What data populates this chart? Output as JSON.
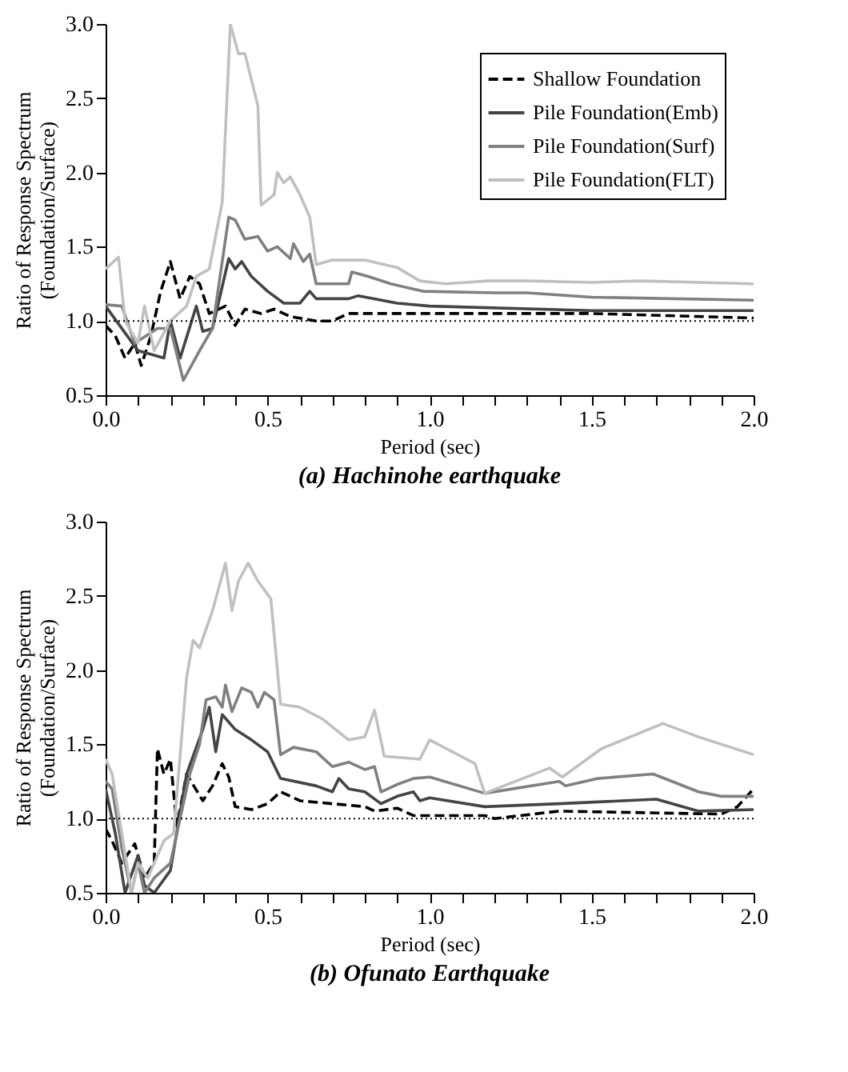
{
  "chart_data": [
    {
      "type": "line",
      "title": "(a) Hachinohe earthquake",
      "xlabel": "Period (sec)",
      "ylabel": "Ratio of Response Spectrum\n(Foundation/Surface)",
      "xlim": [
        0,
        2
      ],
      "ylim": [
        0.5,
        3
      ],
      "xticks": [
        {
          "value": 0,
          "label": "0.0"
        },
        {
          "value": 0.1,
          "label": null
        },
        {
          "value": 0.2,
          "label": null
        },
        {
          "value": 0.3,
          "label": null
        },
        {
          "value": 0.4,
          "label": null
        },
        {
          "value": 0.5,
          "label": "0.5"
        },
        {
          "value": 0.6,
          "label": null
        },
        {
          "value": 0.7,
          "label": null
        },
        {
          "value": 0.8,
          "label": null
        },
        {
          "value": 0.9,
          "label": null
        },
        {
          "value": 1,
          "label": "1.0"
        },
        {
          "value": 1.1,
          "label": null
        },
        {
          "value": 1.2,
          "label": null
        },
        {
          "value": 1.3,
          "label": null
        },
        {
          "value": 1.4,
          "label": null
        },
        {
          "value": 1.5,
          "label": "1.5"
        },
        {
          "value": 1.6,
          "label": null
        },
        {
          "value": 1.7,
          "label": null
        },
        {
          "value": 1.8,
          "label": null
        },
        {
          "value": 1.9,
          "label": null
        },
        {
          "value": 2,
          "label": "2.0"
        }
      ],
      "yticks": [
        0.5,
        {
          "value": 1,
          "label": "1.0"
        },
        1.5,
        {
          "value": 2,
          "label": "2.0"
        },
        2.5,
        {
          "value": 3,
          "label": "3.0"
        }
      ],
      "legend": "top right",
      "marker": "none",
      "grid": false,
      "ref_lines": [
        {
          "axis": "y",
          "value": 1,
          "color": "#000000",
          "line_style": "dotted"
        }
      ],
      "series": [
        {
          "name": "Shallow Foundation",
          "color": "#000000",
          "line_style": "dashed",
          "x": [
            0,
            0.03,
            0.06,
            0.09,
            0.11,
            0.14,
            0.17,
            0.2,
            0.23,
            0.26,
            0.29,
            0.32,
            0.37,
            0.4,
            0.43,
            0.48,
            0.52,
            0.57,
            0.65,
            0.7,
            0.75,
            1.0,
            1.5,
            2.0
          ],
          "values": [
            0.97,
            0.9,
            0.75,
            0.85,
            0.7,
            0.9,
            1.2,
            1.4,
            1.15,
            1.3,
            1.25,
            1.05,
            1.1,
            0.97,
            1.08,
            1.05,
            1.08,
            1.03,
            1.0,
            1.0,
            1.05,
            1.05,
            1.05,
            1.02
          ]
        },
        {
          "name": "Pile Foundation(Emb)",
          "color": "#444444",
          "line_style": "solid",
          "x": [
            0,
            0.1,
            0.18,
            0.2,
            0.23,
            0.28,
            0.3,
            0.33,
            0.38,
            0.4,
            0.42,
            0.45,
            0.5,
            0.55,
            0.6,
            0.63,
            0.65,
            0.75,
            0.78,
            0.9,
            1.0,
            1.5,
            2.0
          ],
          "values": [
            1.1,
            0.8,
            0.75,
            1.0,
            0.75,
            1.1,
            0.93,
            0.95,
            1.42,
            1.35,
            1.4,
            1.3,
            1.2,
            1.12,
            1.12,
            1.2,
            1.15,
            1.15,
            1.17,
            1.12,
            1.1,
            1.07,
            1.07
          ]
        },
        {
          "name": "Pile Foundation(Surf)",
          "color": "#808080",
          "line_style": "solid",
          "x": [
            0,
            0.05,
            0.09,
            0.16,
            0.2,
            0.24,
            0.29,
            0.33,
            0.38,
            0.4,
            0.43,
            0.47,
            0.5,
            0.53,
            0.57,
            0.58,
            0.61,
            0.63,
            0.65,
            0.71,
            0.75,
            0.76,
            0.81,
            0.88,
            0.98,
            1.2,
            1.3,
            1.5,
            2.0
          ],
          "values": [
            1.11,
            1.1,
            0.85,
            0.95,
            0.95,
            0.6,
            0.8,
            0.95,
            1.7,
            1.68,
            1.55,
            1.57,
            1.47,
            1.5,
            1.42,
            1.52,
            1.4,
            1.45,
            1.25,
            1.25,
            1.25,
            1.33,
            1.3,
            1.25,
            1.2,
            1.19,
            1.19,
            1.16,
            1.14
          ]
        },
        {
          "name": "Pile Foundation(FLT)",
          "color": "#c0c0c0",
          "line_style": "solid",
          "x": [
            0,
            0.04,
            0.06,
            0.1,
            0.12,
            0.15,
            0.2,
            0.25,
            0.28,
            0.32,
            0.36,
            0.385,
            0.41,
            0.43,
            0.47,
            0.48,
            0.52,
            0.53,
            0.55,
            0.57,
            0.6,
            0.63,
            0.65,
            0.7,
            0.8,
            0.9,
            0.97,
            1.05,
            1.18,
            1.3,
            1.5,
            1.65,
            2.0
          ],
          "values": [
            1.35,
            1.43,
            1.0,
            0.85,
            1.1,
            0.8,
            1.0,
            1.1,
            1.3,
            1.35,
            1.8,
            3.0,
            2.8,
            2.8,
            2.45,
            1.78,
            1.85,
            2.0,
            1.93,
            1.97,
            1.85,
            1.7,
            1.38,
            1.41,
            1.41,
            1.36,
            1.27,
            1.25,
            1.27,
            1.27,
            1.26,
            1.27,
            1.25
          ]
        }
      ]
    },
    {
      "type": "line",
      "title": "(b) Ofunato Earthquake",
      "xlabel": "Period (sec)",
      "ylabel": "Ratio of Response Spectrum\n(Foundation/Surface)",
      "xlim": [
        0,
        2
      ],
      "ylim": [
        0.5,
        3
      ],
      "xticks": [
        {
          "value": 0,
          "label": "0.0"
        },
        {
          "value": 0.1,
          "label": null
        },
        {
          "value": 0.2,
          "label": null
        },
        {
          "value": 0.3,
          "label": null
        },
        {
          "value": 0.4,
          "label": null
        },
        {
          "value": 0.5,
          "label": "0.5"
        },
        {
          "value": 0.6,
          "label": null
        },
        {
          "value": 0.7,
          "label": null
        },
        {
          "value": 0.8,
          "label": null
        },
        {
          "value": 0.9,
          "label": null
        },
        {
          "value": 1,
          "label": "1.0"
        },
        {
          "value": 1.1,
          "label": null
        },
        {
          "value": 1.2,
          "label": null
        },
        {
          "value": 1.3,
          "label": null
        },
        {
          "value": 1.4,
          "label": null
        },
        {
          "value": 1.5,
          "label": "1.5"
        },
        {
          "value": 1.6,
          "label": null
        },
        {
          "value": 1.7,
          "label": null
        },
        {
          "value": 1.8,
          "label": null
        },
        {
          "value": 1.9,
          "label": null
        },
        {
          "value": 2,
          "label": "2.0"
        }
      ],
      "yticks": [
        0.5,
        {
          "value": 1,
          "label": "1.0"
        },
        1.5,
        {
          "value": 2,
          "label": "2.0"
        },
        2.5,
        {
          "value": 3,
          "label": "3.0"
        }
      ],
      "legend": "top right",
      "marker": "none",
      "grid": false,
      "ref_lines": [
        {
          "axis": "y",
          "value": 1,
          "color": "#000000",
          "line_style": "dotted"
        }
      ],
      "series": [
        {
          "name": "Shallow Foundation",
          "color": "#000000",
          "line_style": "dashed",
          "x": [
            0,
            0.02,
            0.05,
            0.09,
            0.12,
            0.15,
            0.16,
            0.18,
            0.2,
            0.22,
            0.25,
            0.3,
            0.33,
            0.36,
            0.38,
            0.4,
            0.45,
            0.5,
            0.54,
            0.6,
            0.7,
            0.8,
            0.83,
            0.9,
            0.95,
            1.17,
            1.2,
            1.4,
            1.9,
            1.95,
            2.0
          ],
          "values": [
            0.93,
            0.85,
            0.7,
            0.83,
            0.6,
            0.7,
            1.47,
            1.3,
            1.4,
            0.95,
            1.3,
            1.12,
            1.22,
            1.37,
            1.28,
            1.08,
            1.06,
            1.1,
            1.18,
            1.12,
            1.1,
            1.08,
            1.05,
            1.07,
            1.02,
            1.02,
            1.0,
            1.05,
            1.03,
            1.08,
            1.2
          ]
        },
        {
          "name": "Pile Foundation(Emb)",
          "color": "#444444",
          "line_style": "solid",
          "x": [
            0,
            0.03,
            0.06,
            0.1,
            0.12,
            0.15,
            0.2,
            0.25,
            0.3,
            0.32,
            0.34,
            0.36,
            0.4,
            0.45,
            0.5,
            0.54,
            0.65,
            0.7,
            0.72,
            0.75,
            0.8,
            0.85,
            0.9,
            0.95,
            0.97,
            1.0,
            1.17,
            1.4,
            1.7,
            1.83,
            2.0
          ],
          "values": [
            1.2,
            0.9,
            0.5,
            0.75,
            0.55,
            0.5,
            0.65,
            1.3,
            1.6,
            1.75,
            1.45,
            1.7,
            1.6,
            1.53,
            1.45,
            1.27,
            1.22,
            1.18,
            1.27,
            1.2,
            1.18,
            1.1,
            1.15,
            1.18,
            1.12,
            1.14,
            1.08,
            1.1,
            1.13,
            1.05,
            1.06
          ]
        },
        {
          "name": "Pile Foundation(Surf)",
          "color": "#808080",
          "line_style": "solid",
          "x": [
            0,
            0.02,
            0.05,
            0.08,
            0.1,
            0.12,
            0.15,
            0.2,
            0.23,
            0.26,
            0.29,
            0.31,
            0.34,
            0.36,
            0.37,
            0.39,
            0.42,
            0.45,
            0.47,
            0.49,
            0.52,
            0.54,
            0.58,
            0.65,
            0.7,
            0.75,
            0.8,
            0.83,
            0.85,
            0.9,
            0.95,
            1.0,
            1.17,
            1.4,
            1.42,
            1.52,
            1.69,
            1.83,
            1.9,
            2.0
          ],
          "values": [
            1.25,
            1.2,
            0.8,
            0.5,
            0.7,
            0.5,
            0.6,
            0.7,
            1.0,
            1.3,
            1.5,
            1.8,
            1.82,
            1.75,
            1.9,
            1.72,
            1.88,
            1.85,
            1.75,
            1.85,
            1.8,
            1.43,
            1.48,
            1.45,
            1.35,
            1.38,
            1.33,
            1.35,
            1.18,
            1.23,
            1.27,
            1.28,
            1.17,
            1.25,
            1.22,
            1.27,
            1.3,
            1.18,
            1.15,
            1.15
          ]
        },
        {
          "name": "Pile Foundation(FLT)",
          "color": "#c0c0c0",
          "line_style": "solid",
          "x": [
            0,
            0.02,
            0.08,
            0.1,
            0.13,
            0.18,
            0.21,
            0.25,
            0.27,
            0.29,
            0.33,
            0.37,
            0.39,
            0.41,
            0.44,
            0.47,
            0.51,
            0.54,
            0.6,
            0.67,
            0.75,
            0.8,
            0.83,
            0.86,
            0.97,
            1.0,
            1.14,
            1.17,
            1.37,
            1.41,
            1.53,
            1.72,
            1.83,
            2.0
          ],
          "values": [
            1.4,
            1.3,
            0.5,
            0.7,
            0.6,
            0.85,
            0.9,
            1.95,
            2.2,
            2.15,
            2.4,
            2.72,
            2.4,
            2.6,
            2.72,
            2.6,
            2.48,
            1.77,
            1.75,
            1.67,
            1.53,
            1.55,
            1.73,
            1.42,
            1.4,
            1.53,
            1.37,
            1.17,
            1.34,
            1.28,
            1.47,
            1.64,
            1.55,
            1.43
          ]
        }
      ]
    }
  ]
}
